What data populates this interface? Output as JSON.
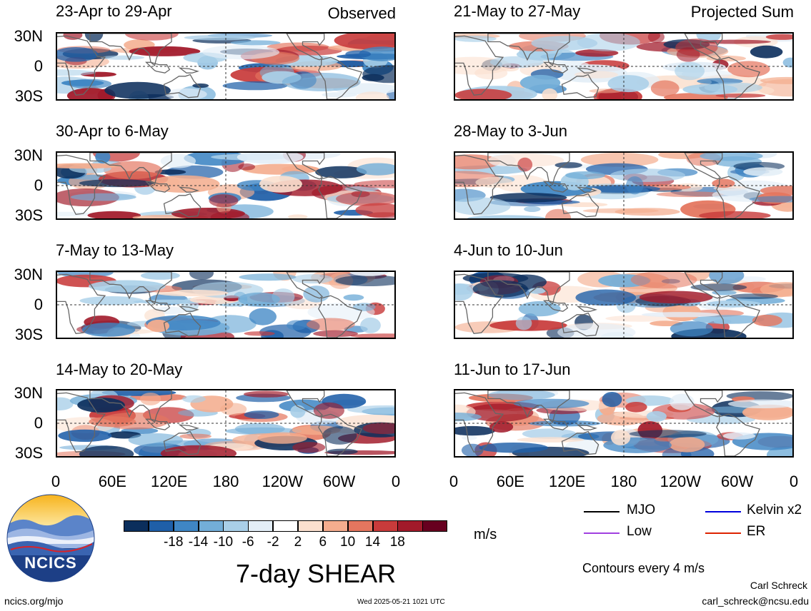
{
  "left_column": {
    "tag": "Observed",
    "panels": [
      {
        "title": "23-Apr to 29-Apr"
      },
      {
        "title": "30-Apr to 6-May"
      },
      {
        "title": "7-May to 13-May"
      },
      {
        "title": "14-May to 20-May"
      }
    ]
  },
  "right_column": {
    "tag": "Projected Sum",
    "panels": [
      {
        "title": "21-May to 27-May"
      },
      {
        "title": "28-May to 3-Jun"
      },
      {
        "title": "4-Jun to 10-Jun"
      },
      {
        "title": "11-Jun to 17-Jun"
      }
    ]
  },
  "lat_labels": [
    "30N",
    "0",
    "30S"
  ],
  "lon_labels": [
    "0",
    "60E",
    "120E",
    "180",
    "120W",
    "60W",
    "0"
  ],
  "colorbar": {
    "labels": [
      "-18",
      "-14",
      "-10",
      "-6",
      "-2",
      "2",
      "6",
      "10",
      "14",
      "18"
    ],
    "colors": [
      "#0b2e5c",
      "#1f5fa8",
      "#3f86c4",
      "#73aed8",
      "#a9cfe8",
      "#e3eef7",
      "#ffffff",
      "#fbe0cf",
      "#f4ad8e",
      "#e4765f",
      "#c83b3b",
      "#a11a2a",
      "#67001f"
    ],
    "unit": "m/s"
  },
  "main_title": "7-day SHEAR",
  "legend": {
    "items": [
      {
        "label": "MJO",
        "color": "#000000"
      },
      {
        "label": "Kelvin x2",
        "color": "#0000dd"
      },
      {
        "label": "Low",
        "color": "#a040e0"
      },
      {
        "label": "ER",
        "color": "#dd2200"
      }
    ],
    "contours": "Contours every 4 m/s"
  },
  "logo_text": "NCICS",
  "footer": {
    "url": "ncics.org/mjo",
    "timestamp": "Wed 2025-05-21 1021 UTC",
    "author": "Carl Schreck",
    "email": "carl_schreck@ncsu.edu"
  }
}
